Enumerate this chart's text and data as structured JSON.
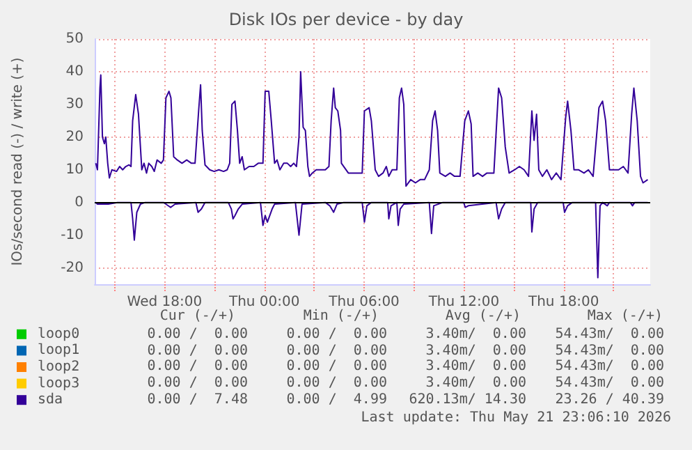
{
  "chart_data": {
    "type": "line",
    "title": "Disk IOs per device - by day",
    "ylabel": "IOs/second read (-) / write (+)",
    "xlim": [
      "2026-05-20T13:48",
      "2026-05-21T23:12"
    ],
    "ylim": [
      -25,
      50
    ],
    "xticks": [
      {
        "value": "2026-05-20T15:00",
        "label": null
      },
      {
        "value": "2026-05-20T18:00",
        "label": "Wed 18:00"
      },
      {
        "value": "2026-05-20T21:00",
        "label": null
      },
      {
        "value": "2026-05-21T00:00",
        "label": "Thu 00:00"
      },
      {
        "value": "2026-05-21T03:00",
        "label": null
      },
      {
        "value": "2026-05-21T06:00",
        "label": "Thu 06:00"
      },
      {
        "value": "2026-05-21T09:00",
        "label": null
      },
      {
        "value": "2026-05-21T12:00",
        "label": "Thu 12:00"
      },
      {
        "value": "2026-05-21T15:00",
        "label": null
      },
      {
        "value": "2026-05-21T18:00",
        "label": "Thu 18:00"
      },
      {
        "value": "2026-05-21T21:00",
        "label": null
      }
    ],
    "yticks": [
      -20,
      -10,
      0,
      10,
      20,
      30,
      40,
      50
    ],
    "ref_lines": [
      {
        "axis": "y",
        "value": 0,
        "color": "#000000"
      }
    ],
    "grid": true,
    "legend": "bottom left",
    "marker": "none",
    "line_style": "solid",
    "series": [
      {
        "name": "loop0",
        "color": "#00cc00"
      },
      {
        "name": "loop1",
        "color": "#0066b3"
      },
      {
        "name": "loop2",
        "color": "#ff8000"
      },
      {
        "name": "loop3",
        "color": "#ffcc00"
      },
      {
        "name": "sda",
        "color": "#330099",
        "x": [
          "2026-05-20T13:52",
          "2026-05-20T13:58",
          "2026-05-20T14:07",
          "2026-05-20T14:10",
          "2026-05-20T14:16",
          "2026-05-20T14:23",
          "2026-05-20T14:28",
          "2026-05-20T14:35",
          "2026-05-20T14:41",
          "2026-05-20T14:50",
          "2026-05-20T15:07",
          "2026-05-20T15:18",
          "2026-05-20T15:29",
          "2026-05-20T15:40",
          "2026-05-20T15:52",
          "2026-05-20T15:59",
          "2026-05-20T16:05",
          "2026-05-20T16:16",
          "2026-05-20T16:26",
          "2026-05-20T16:33",
          "2026-05-20T16:38",
          "2026-05-20T16:46",
          "2026-05-20T16:55",
          "2026-05-20T17:03",
          "2026-05-20T17:14",
          "2026-05-20T17:23",
          "2026-05-20T17:33",
          "2026-05-20T17:48",
          "2026-05-20T17:56",
          "2026-05-20T18:05",
          "2026-05-20T18:16",
          "2026-05-20T18:23",
          "2026-05-20T18:33",
          "2026-05-20T18:46",
          "2026-05-20T19:03",
          "2026-05-20T19:20",
          "2026-05-20T19:37",
          "2026-05-20T19:50",
          "2026-05-20T20:03",
          "2026-05-20T20:10",
          "2026-05-20T20:16",
          "2026-05-20T20:26",
          "2026-05-20T20:43",
          "2026-05-20T20:59",
          "2026-05-20T21:16",
          "2026-05-20T21:33",
          "2026-05-20T21:46",
          "2026-05-20T21:55",
          "2026-05-20T22:03",
          "2026-05-20T22:14",
          "2026-05-20T22:23",
          "2026-05-20T22:31",
          "2026-05-20T22:40",
          "2026-05-20T22:48",
          "2026-05-20T23:05",
          "2026-05-20T23:22",
          "2026-05-20T23:38",
          "2026-05-20T23:55",
          "2026-05-21T00:03",
          "2026-05-21T00:16",
          "2026-05-21T00:25",
          "2026-05-21T00:37",
          "2026-05-21T00:46",
          "2026-05-21T00:56",
          "2026-05-21T01:10",
          "2026-05-21T01:23",
          "2026-05-21T01:35",
          "2026-05-21T01:46",
          "2026-05-21T01:56",
          "2026-05-21T02:05",
          "2026-05-21T02:11",
          "2026-05-21T02:20",
          "2026-05-21T02:28",
          "2026-05-21T02:37",
          "2026-05-21T02:43",
          "2026-05-21T02:53",
          "2026-05-21T03:07",
          "2026-05-21T03:23",
          "2026-05-21T03:40",
          "2026-05-21T03:53",
          "2026-05-21T04:01",
          "2026-05-21T04:10",
          "2026-05-21T04:16",
          "2026-05-21T04:25",
          "2026-05-21T04:35",
          "2026-05-21T04:38",
          "2026-05-21T05:03",
          "2026-05-21T05:28",
          "2026-05-21T05:53",
          "2026-05-21T06:01",
          "2026-05-21T06:18",
          "2026-05-21T06:26",
          "2026-05-21T06:40",
          "2026-05-21T06:52",
          "2026-05-21T07:08",
          "2026-05-21T07:20",
          "2026-05-21T07:29",
          "2026-05-21T07:41",
          "2026-05-21T07:58",
          "2026-05-21T08:07",
          "2026-05-21T08:15",
          "2026-05-21T08:23",
          "2026-05-21T08:31",
          "2026-05-21T08:48",
          "2026-05-21T09:05",
          "2026-05-21T09:22",
          "2026-05-21T09:38",
          "2026-05-21T09:55",
          "2026-05-21T10:07",
          "2026-05-21T10:16",
          "2026-05-21T10:25",
          "2026-05-21T10:33",
          "2026-05-21T10:53",
          "2026-05-21T11:10",
          "2026-05-21T11:26",
          "2026-05-21T11:46",
          "2026-05-21T12:03",
          "2026-05-21T12:16",
          "2026-05-21T12:26",
          "2026-05-21T12:33",
          "2026-05-21T12:50",
          "2026-05-21T13:07",
          "2026-05-21T13:23",
          "2026-05-21T13:48",
          "2026-05-21T14:05",
          "2026-05-21T14:16",
          "2026-05-21T14:29",
          "2026-05-21T14:43",
          "2026-05-21T15:03",
          "2026-05-21T15:20",
          "2026-05-21T15:37",
          "2026-05-21T15:53",
          "2026-05-21T16:05",
          "2026-05-21T16:13",
          "2026-05-21T16:22",
          "2026-05-21T16:30",
          "2026-05-21T16:43",
          "2026-05-21T16:59",
          "2026-05-21T17:16",
          "2026-05-21T17:33",
          "2026-05-21T17:50",
          "2026-05-21T18:07",
          "2026-05-21T18:14",
          "2026-05-21T18:26",
          "2026-05-21T18:37",
          "2026-05-21T18:53",
          "2026-05-21T19:13",
          "2026-05-21T19:29",
          "2026-05-21T19:46",
          "2026-05-21T20:07",
          "2026-05-21T20:20",
          "2026-05-21T20:31",
          "2026-05-21T20:45",
          "2026-05-21T21:01",
          "2026-05-21T21:18",
          "2026-05-21T21:35",
          "2026-05-21T21:52",
          "2026-05-21T22:05",
          "2026-05-21T22:13",
          "2026-05-21T22:25",
          "2026-05-21T22:37",
          "2026-05-21T22:46",
          "2026-05-21T23:03"
        ],
        "values": [
          12,
          10,
          35,
          39,
          20,
          18,
          20,
          12,
          7.5,
          10,
          9.5,
          11,
          10,
          11,
          11.5,
          11,
          25,
          33,
          27,
          17,
          10,
          12,
          9,
          12,
          11,
          9.5,
          13,
          12,
          13,
          32,
          34,
          32,
          14,
          13,
          12,
          13,
          12,
          12,
          28,
          36,
          22,
          11.5,
          10,
          9.5,
          10,
          9.5,
          10,
          12,
          30,
          31,
          22,
          12,
          14,
          10,
          11,
          11,
          12,
          12,
          34,
          34,
          25,
          12,
          13,
          10,
          12,
          12,
          11,
          12,
          11,
          20,
          40,
          23,
          22,
          11,
          8,
          9,
          10,
          10,
          10,
          11,
          25,
          35,
          29,
          28,
          22,
          12,
          9,
          9,
          9,
          28,
          29,
          25,
          10,
          8,
          9,
          11,
          8,
          10,
          10,
          32,
          35,
          30,
          5,
          7,
          6,
          7,
          7,
          10,
          25,
          28,
          22,
          9,
          8,
          9,
          8,
          8,
          25,
          28,
          24,
          8,
          9,
          8,
          9,
          9,
          35,
          32,
          17,
          9,
          10,
          11,
          10,
          8,
          28,
          19,
          27,
          10,
          8,
          10,
          7,
          9,
          7,
          26,
          31,
          22,
          10,
          10,
          9,
          10,
          8,
          29,
          31,
          25,
          10,
          10,
          10,
          11,
          9,
          27,
          35,
          25,
          8,
          6,
          7
        ]
      },
      {
        "color": "#330099",
        "x": [
          "2026-05-20T13:52",
          "2026-05-20T13:58",
          "2026-05-20T14:37",
          "2026-05-20T15:10",
          "2026-05-20T15:59",
          "2026-05-20T16:05",
          "2026-05-20T16:11",
          "2026-05-20T16:20",
          "2026-05-20T16:33",
          "2026-05-20T16:50",
          "2026-05-20T17:56",
          "2026-05-20T18:05",
          "2026-05-20T18:22",
          "2026-05-20T18:38",
          "2026-05-20T19:53",
          "2026-05-20T20:01",
          "2026-05-20T20:13",
          "2026-05-20T20:26",
          "2026-05-20T21:50",
          "2026-05-20T22:01",
          "2026-05-20T22:07",
          "2026-05-20T22:14",
          "2026-05-20T22:26",
          "2026-05-20T22:40",
          "2026-05-20T23:46",
          "2026-05-20T23:55",
          "2026-05-21T00:03",
          "2026-05-21T00:11",
          "2026-05-21T00:28",
          "2026-05-21T00:37",
          "2026-05-21T01:52",
          "2026-05-21T02:05",
          "2026-05-21T02:16",
          "2026-05-21T03:40",
          "2026-05-21T03:56",
          "2026-05-21T04:10",
          "2026-05-21T04:22",
          "2026-05-21T04:46",
          "2026-05-21T05:53",
          "2026-05-21T06:01",
          "2026-05-21T06:10",
          "2026-05-21T06:26",
          "2026-05-21T07:25",
          "2026-05-21T07:29",
          "2026-05-21T07:37",
          "2026-05-21T07:58",
          "2026-05-21T08:03",
          "2026-05-21T08:10",
          "2026-05-21T08:23",
          "2026-05-21T09:55",
          "2026-05-21T10:03",
          "2026-05-21T10:11",
          "2026-05-21T10:44",
          "2026-05-21T11:59",
          "2026-05-21T12:05",
          "2026-05-21T12:16",
          "2026-05-21T13:56",
          "2026-05-21T14:05",
          "2026-05-21T14:16",
          "2026-05-21T14:29",
          "2026-05-21T16:01",
          "2026-05-21T16:05",
          "2026-05-21T16:13",
          "2026-05-21T16:26",
          "2026-05-21T17:58",
          "2026-05-21T18:03",
          "2026-05-21T18:14",
          "2026-05-21T18:31",
          "2026-05-21T19:55",
          "2026-05-21T20:03",
          "2026-05-21T20:11",
          "2026-05-21T20:20",
          "2026-05-21T20:37",
          "2026-05-21T20:45",
          "2026-05-21T22:00",
          "2026-05-21T22:08",
          "2026-05-21T22:16",
          "2026-05-21T23:03"
        ],
        "values": [
          0,
          -0.5,
          -0.5,
          0,
          0,
          -5,
          -11.5,
          -3,
          -0.5,
          0,
          0,
          -0.5,
          -1.5,
          -0.5,
          0,
          -3,
          -2,
          0,
          0,
          -2,
          -5,
          -4,
          -2,
          -0.5,
          0,
          -7,
          -4,
          -6,
          -2,
          -0.5,
          0,
          -10,
          -0.5,
          0,
          -1,
          -3,
          -0.5,
          0,
          0,
          -6,
          -1,
          0,
          0,
          -5,
          -1,
          0,
          -7,
          -2,
          -0.5,
          0,
          -9.5,
          -1,
          0,
          0,
          -1.5,
          -1,
          0,
          -5,
          -2,
          0,
          0,
          -9,
          -2,
          0,
          0,
          -3,
          -1,
          0,
          0,
          -23,
          -1,
          0,
          -1,
          0,
          0,
          -1,
          0,
          0
        ]
      }
    ],
    "annotations": [
      "Cur (-/+)",
      "Min (-/+)",
      "Avg (-/+)",
      "Max (-/+)",
      "0.00 /  0.00",
      "0.00 /  0.00",
      "3.40m/  0.00",
      "54.43m/  0.00",
      "0.00 /  0.00",
      "0.00 /  0.00",
      "3.40m/  0.00",
      "54.43m/  0.00",
      "0.00 /  0.00",
      "0.00 /  0.00",
      "3.40m/  0.00",
      "54.43m/  0.00",
      "0.00 /  0.00",
      "0.00 /  0.00",
      "3.40m/  0.00",
      "54.43m/  0.00",
      "0.00 /  7.48",
      "0.00 /  4.99",
      "620.13m/ 14.30",
      "23.26 / 40.39",
      "Last update: Thu May 21 23:06:10 2026"
    ]
  }
}
